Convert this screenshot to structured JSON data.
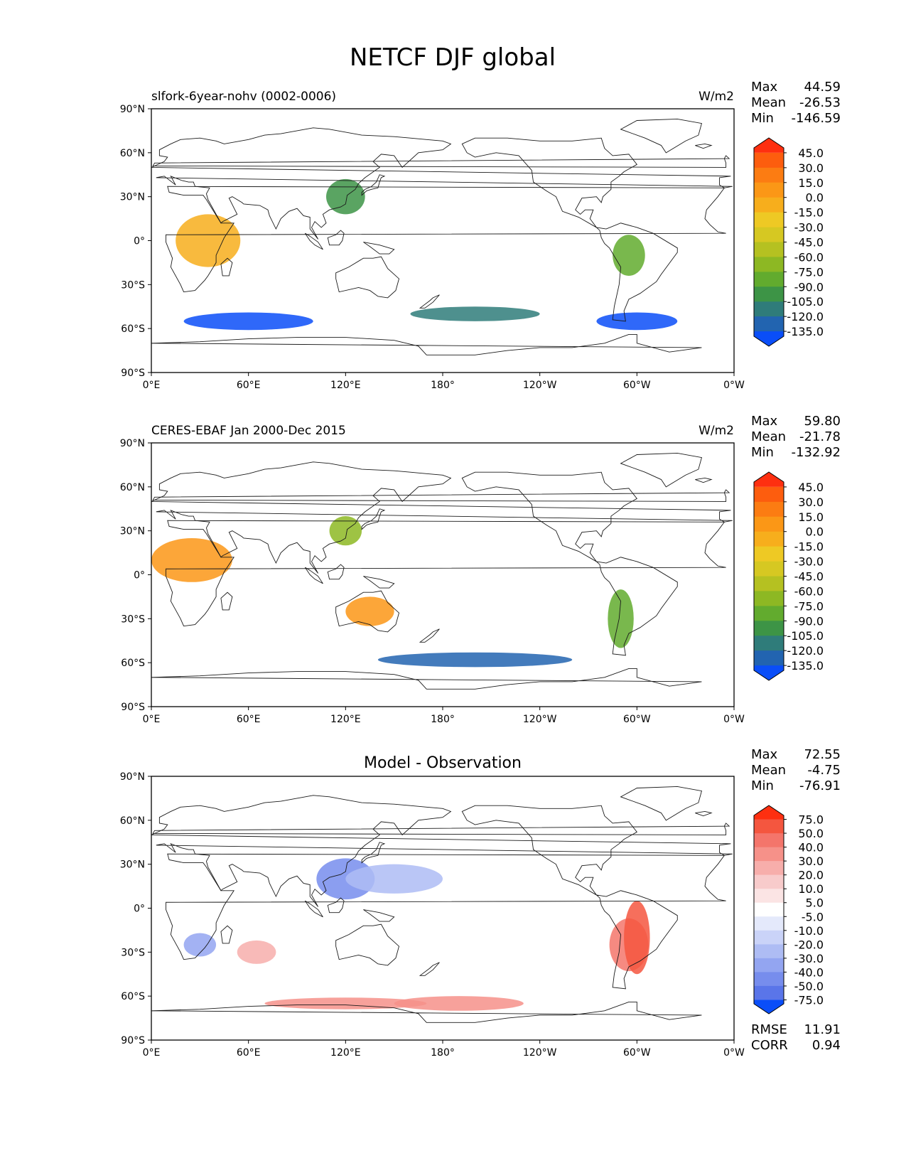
{
  "figure": {
    "title": "NETCF DJF global",
    "x_ticks": [
      "0°E",
      "60°E",
      "120°E",
      "180°",
      "120°W",
      "60°W",
      "0°W"
    ],
    "y_ticks": [
      "90°N",
      "60°N",
      "30°N",
      "0°",
      "30°S",
      "60°S",
      "90°S"
    ],
    "stat_labels": {
      "max": "Max",
      "mean": "Mean",
      "min": "Min",
      "rmse": "RMSE",
      "corr": "CORR"
    }
  },
  "panels": [
    {
      "title_left": "slfork-6year-nohv (0002-0006)",
      "title_center": "",
      "units": "W/m2",
      "stats": {
        "max": "44.59",
        "mean": "-26.53",
        "min": "-146.59"
      }
    },
    {
      "title_left": "CERES-EBAF Jan 2000-Dec 2015",
      "title_center": "",
      "units": "W/m2",
      "stats": {
        "max": "59.80",
        "mean": "-21.78",
        "min": "-132.92"
      }
    },
    {
      "title_left": "",
      "title_center": "Model - Observation",
      "units": "",
      "stats": {
        "max": "72.55",
        "mean": "-4.75",
        "min": "-76.91"
      },
      "extra_stats": {
        "rmse": "11.91",
        "corr": "0.94"
      }
    }
  ],
  "chart_data": [
    {
      "type": "heatmap",
      "title": "slfork-6year-nohv (0002-0006)",
      "units": "W/m2",
      "xlim": [
        0,
        360
      ],
      "ylim": [
        -90,
        90
      ],
      "colorbar": {
        "levels": [
          "45.0",
          "30.0",
          "15.0",
          "0.0",
          "-15.0",
          "-30.0",
          "-45.0",
          "-60.0",
          "-75.0",
          "-90.0",
          "-105.0",
          "-120.0",
          "-135.0"
        ],
        "colors": [
          "#fe2f10",
          "#fd5d0e",
          "#fc7c12",
          "#fb9716",
          "#f7ae1c",
          "#eec924",
          "#d6c822",
          "#b5c121",
          "#8db823",
          "#62ab2e",
          "#3d9446",
          "#2f7c7a",
          "#2264b0",
          "#0a4ef8"
        ]
      },
      "stats": {
        "max": 44.59,
        "mean": -26.53,
        "min": -146.59
      }
    },
    {
      "type": "heatmap",
      "title": "CERES-EBAF Jan 2000-Dec 2015",
      "units": "W/m2",
      "xlim": [
        0,
        360
      ],
      "ylim": [
        -90,
        90
      ],
      "colorbar": {
        "levels": [
          "45.0",
          "30.0",
          "15.0",
          "0.0",
          "-15.0",
          "-30.0",
          "-45.0",
          "-60.0",
          "-75.0",
          "-90.0",
          "-105.0",
          "-120.0",
          "-135.0"
        ],
        "colors": [
          "#fe2f10",
          "#fd5d0e",
          "#fc7c12",
          "#fb9716",
          "#f7ae1c",
          "#eec924",
          "#d6c822",
          "#b5c121",
          "#8db823",
          "#62ab2e",
          "#3d9446",
          "#2f7c7a",
          "#2264b0",
          "#0a4ef8"
        ]
      },
      "stats": {
        "max": 59.8,
        "mean": -21.78,
        "min": -132.92
      }
    },
    {
      "type": "heatmap",
      "title": "Model - Observation",
      "units": "W/m2",
      "xlim": [
        0,
        360
      ],
      "ylim": [
        -90,
        90
      ],
      "colorbar": {
        "levels": [
          "75.0",
          "50.0",
          "40.0",
          "30.0",
          "20.0",
          "10.0",
          "5.0",
          "-5.0",
          "-10.0",
          "-20.0",
          "-30.0",
          "-40.0",
          "-50.0",
          "-75.0"
        ],
        "colors": [
          "#fe2f10",
          "#f4563f",
          "#f4756b",
          "#f69189",
          "#f7aeab",
          "#f8cbcb",
          "#fbe4e4",
          "#ffffff",
          "#e4e9fb",
          "#cad3f8",
          "#aebcf4",
          "#93a5f1",
          "#778ded",
          "#5a75e9",
          "#0a4ef8"
        ]
      },
      "stats": {
        "max": 72.55,
        "mean": -4.75,
        "min": -76.91,
        "rmse": 11.91,
        "corr": 0.94
      }
    }
  ]
}
